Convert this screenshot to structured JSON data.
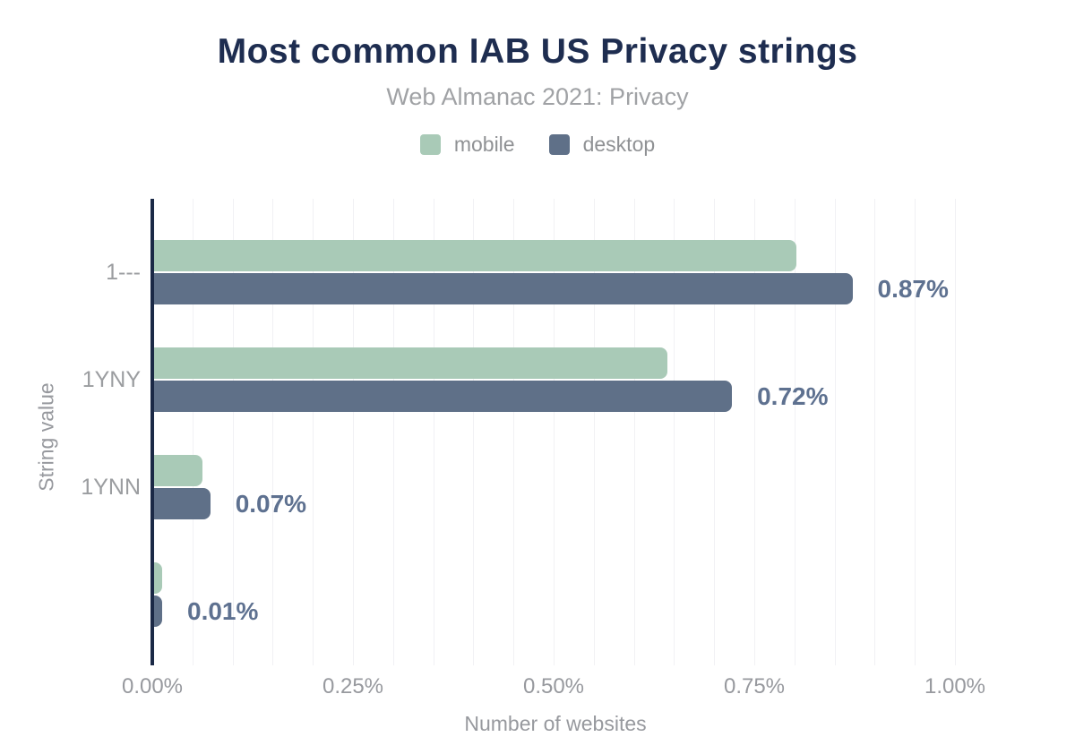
{
  "page": {
    "background": "#ffffff"
  },
  "chart_data": {
    "type": "bar",
    "orientation": "horizontal",
    "title": "Most common IAB US Privacy strings",
    "subtitle": "Web Almanac 2021: Privacy",
    "xlabel": "Number of websites",
    "ylabel": "String value",
    "categories": [
      "1---",
      "1YNY",
      "1YNN",
      ""
    ],
    "series": [
      {
        "name": "mobile",
        "color": "#a9cab7",
        "values_pct": [
          0.8,
          0.64,
          0.06,
          0.01
        ]
      },
      {
        "name": "desktop",
        "color": "#5f7088",
        "values_pct": [
          0.87,
          0.72,
          0.07,
          0.01
        ]
      }
    ],
    "bar_value_labels": [
      "0.87%",
      "0.72%",
      "0.07%",
      "0.01%"
    ],
    "x_ticks": [
      "0.00%",
      "0.25%",
      "0.50%",
      "0.75%",
      "1.00%"
    ],
    "xlim_pct": [
      0,
      1.0
    ],
    "grid_step_pct": 0.05,
    "grid_on": true,
    "legend_position": "top",
    "colors": {
      "title": "#1e2d50",
      "subtitle": "#a0a2a5",
      "axis_text": "#97999e",
      "value_label": "#5e7190",
      "axis_line": "#1b2946",
      "gridline": "#f1f1f4"
    }
  }
}
